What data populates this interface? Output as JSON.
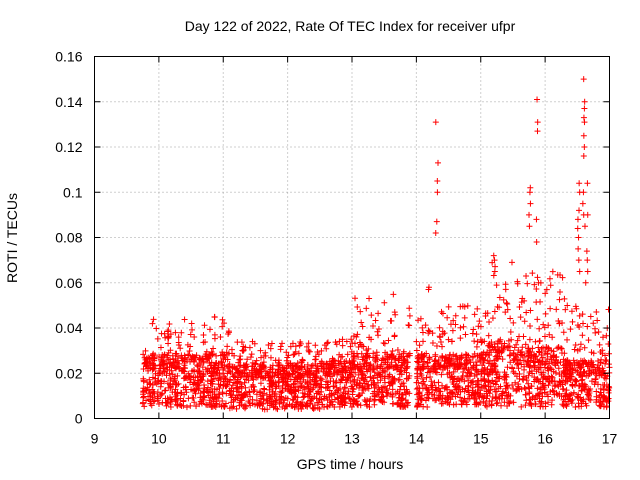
{
  "chart_data": {
    "type": "scatter",
    "title": "Day 122 of 2022, Rate Of TEC Index for receiver ufpr",
    "xlabel": "GPS time / hours",
    "ylabel": "ROTI / TECUs",
    "xlim": [
      9,
      17
    ],
    "ylim": [
      0,
      0.16
    ],
    "xticks": [
      "9",
      "10",
      "11",
      "12",
      "13",
      "14",
      "15",
      "16",
      "17"
    ],
    "yticks": [
      "0",
      "0.02",
      "0.04",
      "0.06",
      "0.08",
      "0.1",
      "0.12",
      "0.14",
      "0.16"
    ],
    "grid": true,
    "marker": "plus",
    "series_color": "#ff0000",
    "series": [
      {
        "name": "ROTI",
        "segments": [
          {
            "x0": 9.75,
            "x1": 11.1,
            "base": 0.005,
            "typ": 0.022,
            "peak": 0.045
          },
          {
            "x0": 11.1,
            "x1": 12.5,
            "base": 0.004,
            "typ": 0.018,
            "peak": 0.034
          },
          {
            "x0": 12.5,
            "x1": 13.0,
            "base": 0.005,
            "typ": 0.02,
            "peak": 0.036
          },
          {
            "x0": 13.0,
            "x1": 13.9,
            "base": 0.005,
            "typ": 0.022,
            "peak": 0.055
          },
          {
            "x0": 14.0,
            "x1": 14.3,
            "base": 0.005,
            "typ": 0.022,
            "peak": 0.045
          },
          {
            "x0": 14.3,
            "x1": 15.0,
            "base": 0.006,
            "typ": 0.022,
            "peak": 0.05
          },
          {
            "x0": 15.0,
            "x1": 15.6,
            "base": 0.005,
            "typ": 0.026,
            "peak": 0.07
          },
          {
            "x0": 15.6,
            "x1": 16.3,
            "base": 0.005,
            "typ": 0.024,
            "peak": 0.065
          },
          {
            "x0": 16.3,
            "x1": 17.0,
            "base": 0.005,
            "typ": 0.02,
            "peak": 0.05
          }
        ],
        "spikes": [
          {
            "x": 14.32,
            "y": [
              0.131,
              0.113,
              0.105,
              0.1,
              0.087,
              0.082
            ]
          },
          {
            "x": 14.2,
            "y": [
              0.058,
              0.057
            ]
          },
          {
            "x": 15.22,
            "y": [
              0.065,
              0.07,
              0.072
            ]
          },
          {
            "x": 15.76,
            "y": [
              0.085,
              0.09,
              0.095,
              0.102,
              0.1
            ]
          },
          {
            "x": 15.88,
            "y": [
              0.141,
              0.131,
              0.127,
              0.088,
              0.078,
              0.06
            ]
          },
          {
            "x": 16.52,
            "y": [
              0.092,
              0.1,
              0.104,
              0.088,
              0.084,
              0.08,
              0.075,
              0.07,
              0.065
            ]
          },
          {
            "x": 16.6,
            "y": [
              0.15,
              0.14,
              0.137,
              0.133,
              0.131,
              0.125,
              0.12,
              0.116,
              0.1,
              0.095,
              0.09,
              0.085
            ]
          },
          {
            "x": 16.65,
            "y": [
              0.104,
              0.09,
              0.074,
              0.07,
              0.065,
              0.06
            ]
          }
        ]
      }
    ]
  }
}
